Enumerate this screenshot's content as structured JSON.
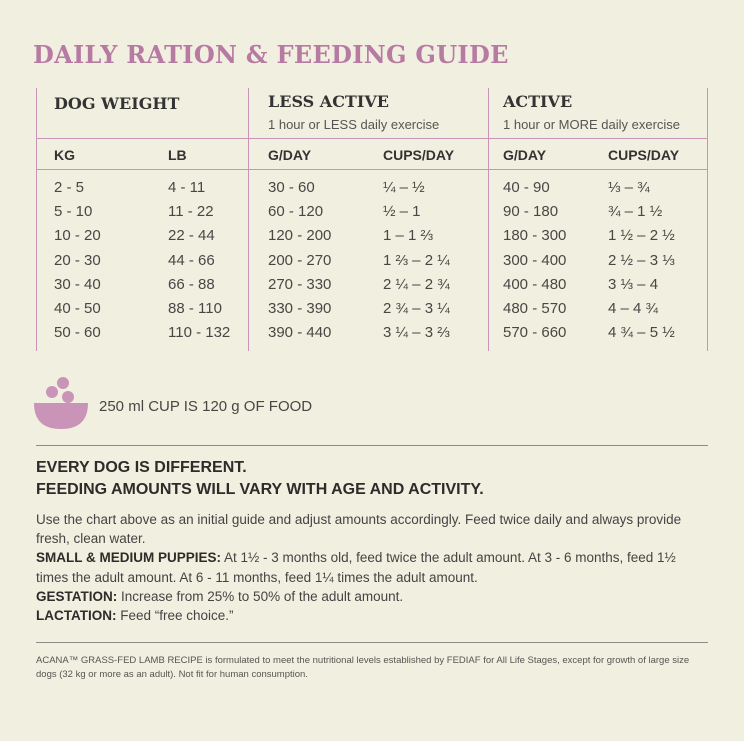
{
  "title": "DAILY RATION & FEEDING GUIDE",
  "table": {
    "groups": {
      "dog_weight": "DOG WEIGHT",
      "less_active": "LESS ACTIVE",
      "less_active_sub": "1 hour or LESS daily exercise",
      "active": "ACTIVE",
      "active_sub": "1 hour or MORE daily exercise"
    },
    "columns": {
      "kg": "KG",
      "lb": "LB",
      "less_gday": "G/DAY",
      "less_cups": "CUPS/DAY",
      "active_gday": "G/DAY",
      "active_cups": "CUPS/DAY"
    },
    "rows": [
      {
        "kg": "2 - 5",
        "lb": "4 - 11",
        "less_gday": "30 - 60",
        "less_cups": "¼ – ½",
        "active_gday": "40 - 90",
        "active_cups": "⅓ – ¾"
      },
      {
        "kg": "5 - 10",
        "lb": "11 - 22",
        "less_gday": "60 - 120",
        "less_cups": "½ – 1",
        "active_gday": "90 - 180",
        "active_cups": "¾ – 1 ½"
      },
      {
        "kg": "10 - 20",
        "lb": "22 - 44",
        "less_gday": "120 - 200",
        "less_cups": "1 – 1 ⅔",
        "active_gday": "180 - 300",
        "active_cups": "1 ½ – 2 ½"
      },
      {
        "kg": "20 - 30",
        "lb": "44 - 66",
        "less_gday": "200 - 270",
        "less_cups": "1 ⅔ – 2 ¼",
        "active_gday": "300 - 400",
        "active_cups": "2 ½ – 3 ⅓"
      },
      {
        "kg": "30 - 40",
        "lb": "66 - 88",
        "less_gday": "270 - 330",
        "less_cups": "2 ¼ – 2 ¾",
        "active_gday": "400 - 480",
        "active_cups": "3 ⅓ – 4"
      },
      {
        "kg": "40 - 50",
        "lb": "88 - 110",
        "less_gday": "330 - 390",
        "less_cups": "2 ¾ – 3 ¼",
        "active_gday": "480 - 570",
        "active_cups": "4 – 4 ¾"
      },
      {
        "kg": "50 - 60",
        "lb": "110 - 132",
        "less_gday": "390 - 440",
        "less_cups": "3 ¼ – 3 ⅔",
        "active_gday": "570 - 660",
        "active_cups": "4 ¾ – 5 ½"
      }
    ]
  },
  "cup_note": "250 ml CUP IS 120 g OF FOOD",
  "headline": {
    "line1": "EVERY DOG IS DIFFERENT.",
    "line2": "FEEDING AMOUNTS WILL VARY WITH AGE AND ACTIVITY."
  },
  "body": {
    "intro": "Use the chart above as an initial guide and adjust amounts accordingly. Feed twice daily and always provide fresh, clean water.",
    "puppies_label": "SMALL & MEDIUM PUPPIES:",
    "puppies_text": " At 1½ - 3 months old, feed twice the adult amount. At 3 - 6 months, feed 1½ times the adult amount. At 6 - 11 months, feed 1¼ times the adult amount.",
    "gestation_label": "GESTATION:",
    "gestation_text": " Increase from 25% to 50% of the adult amount.",
    "lactation_label": "LACTATION:",
    "lactation_text": " Feed “free choice.”"
  },
  "fine_print": "ACANA™ GRASS-FED LAMB RECIPE is formulated to meet the nutritional levels established by FEDIAF for All Life Stages, except for growth of large size dogs (32 kg or more as an adult). Not fit for human consumption.",
  "colors": {
    "accent": "#b77aa3",
    "background": "#f1efdf",
    "cup_icon": "#c994b7"
  },
  "icons": {
    "cup": "food-bowl-icon"
  }
}
